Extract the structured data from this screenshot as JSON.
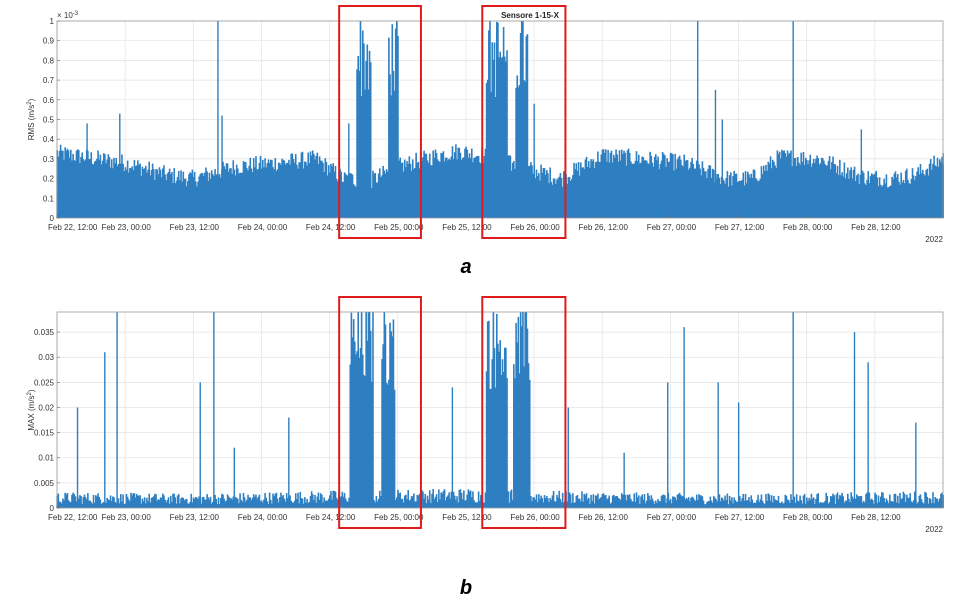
{
  "chart_data": [
    {
      "type": "bar",
      "panel_label": "a",
      "title": "Sensore 1-15-X",
      "ylabel_main": "RMS (m/s",
      "ylabel_sup": "2",
      "ylabel_end": ")",
      "y_exponent_base": "× 10",
      "y_exponent_power": "-3",
      "year_label": "2022",
      "y_scale": 0.001,
      "ylim": [
        0,
        1.0
      ],
      "yticks": [
        0,
        0.1,
        0.2,
        0.3,
        0.4,
        0.5,
        0.6,
        0.7,
        0.8,
        0.9,
        1
      ],
      "ytick_labels": [
        "0",
        "0.1",
        "0.2",
        "0.3",
        "0.4",
        "0.5",
        "0.6",
        "0.7",
        "0.8",
        "0.9",
        "1"
      ],
      "xlim_days": [
        0,
        6.5
      ],
      "xticks_days": [
        0,
        0.5,
        1,
        1.5,
        2,
        2.5,
        3,
        3.5,
        4,
        4.5,
        5,
        5.5,
        6
      ],
      "xtick_labels": [
        "Feb 22, 12:00",
        "Feb 23, 00:00",
        "Feb 23, 12:00",
        "Feb 24, 00:00",
        "Feb 24, 12:00",
        "Feb 25, 00:00",
        "Feb 25, 12:00",
        "Feb 26, 00:00",
        "Feb 26, 12:00",
        "Feb 27, 00:00",
        "Feb 27, 12:00",
        "Feb 28, 00:00",
        "Feb 28, 12:00"
      ],
      "grid": true,
      "series_color": "#2e7fc1",
      "samples_per_day": 120,
      "baseline_profile": {
        "x_days": [
          0,
          0.3,
          0.5,
          0.8,
          1.0,
          1.3,
          1.6,
          1.9,
          2.1,
          2.3,
          2.5,
          2.8,
          2.95,
          3.1,
          3.4,
          3.7,
          4.0,
          4.3,
          4.6,
          4.9,
          5.1,
          5.3,
          5.6,
          5.9,
          6.1,
          6.3,
          6.5
        ],
        "y": [
          0.33,
          0.3,
          0.28,
          0.22,
          0.2,
          0.26,
          0.28,
          0.3,
          0.2,
          0.19,
          0.26,
          0.32,
          0.34,
          0.32,
          0.26,
          0.2,
          0.32,
          0.3,
          0.28,
          0.2,
          0.2,
          0.31,
          0.3,
          0.21,
          0.2,
          0.22,
          0.3
        ]
      },
      "high_activity_intervals_days": [
        [
          2.2,
          2.3
        ],
        [
          2.43,
          2.5
        ],
        [
          3.15,
          3.3
        ],
        [
          3.36,
          3.45
        ]
      ],
      "peaks": [
        {
          "x_day": 0.22,
          "y": 0.48
        },
        {
          "x_day": 0.46,
          "y": 0.53
        },
        {
          "x_day": 1.18,
          "y": 1.0
        },
        {
          "x_day": 1.21,
          "y": 0.52
        },
        {
          "x_day": 2.14,
          "y": 0.48
        },
        {
          "x_day": 3.5,
          "y": 0.58
        },
        {
          "x_day": 4.7,
          "y": 1.0
        },
        {
          "x_day": 4.83,
          "y": 0.65
        },
        {
          "x_day": 4.88,
          "y": 0.5
        },
        {
          "x_day": 5.4,
          "y": 1.0
        },
        {
          "x_day": 5.9,
          "y": 0.45
        },
        {
          "x_day": 6.5,
          "y": 0.33
        }
      ],
      "highlight_intervals_days": [
        [
          2.07,
          2.67
        ],
        [
          3.12,
          3.73
        ]
      ],
      "highlight_color": "#e01b1b"
    },
    {
      "type": "bar",
      "panel_label": "b",
      "title": "",
      "ylabel_main": "MAX (m/s",
      "ylabel_sup": "2",
      "ylabel_end": ")",
      "y_exponent_base": "",
      "y_exponent_power": "",
      "year_label": "2022",
      "y_scale": 1,
      "ylim": [
        0,
        0.039
      ],
      "yticks": [
        0,
        0.005,
        0.01,
        0.015,
        0.02,
        0.025,
        0.03,
        0.035
      ],
      "ytick_labels": [
        "0",
        "0.005",
        "0.01",
        "0.015",
        "0.02",
        "0.025",
        "0.03",
        "0.035"
      ],
      "xlim_days": [
        0,
        6.5
      ],
      "xticks_days": [
        0,
        0.5,
        1,
        1.5,
        2,
        2.5,
        3,
        3.5,
        4,
        4.5,
        5,
        5.5,
        6
      ],
      "xtick_labels": [
        "Feb 22, 12:00",
        "Feb 23, 00:00",
        "Feb 23, 12:00",
        "Feb 24, 00:00",
        "Feb 24, 12:00",
        "Feb 25, 00:00",
        "Feb 25, 12:00",
        "Feb 26, 00:00",
        "Feb 26, 12:00",
        "Feb 27, 00:00",
        "Feb 27, 12:00",
        "Feb 28, 00:00",
        "Feb 28, 12:00"
      ],
      "grid": true,
      "series_color": "#2e7fc1",
      "samples_per_day": 120,
      "baseline_profile": {
        "x_days": [
          0,
          1,
          2,
          3,
          4,
          5,
          6,
          6.5
        ],
        "y": [
          0.002,
          0.0018,
          0.0022,
          0.0025,
          0.002,
          0.0018,
          0.002,
          0.0022
        ]
      },
      "high_activity_intervals_days": [
        [
          2.15,
          2.32
        ],
        [
          2.38,
          2.48
        ],
        [
          3.15,
          3.3
        ],
        [
          3.35,
          3.47
        ]
      ],
      "peaks": [
        {
          "x_day": 0.15,
          "y": 0.02
        },
        {
          "x_day": 0.35,
          "y": 0.031
        },
        {
          "x_day": 0.44,
          "y": 0.039
        },
        {
          "x_day": 1.05,
          "y": 0.025
        },
        {
          "x_day": 1.15,
          "y": 0.039
        },
        {
          "x_day": 1.3,
          "y": 0.012
        },
        {
          "x_day": 1.7,
          "y": 0.018
        },
        {
          "x_day": 2.9,
          "y": 0.024
        },
        {
          "x_day": 3.75,
          "y": 0.02
        },
        {
          "x_day": 4.6,
          "y": 0.036
        },
        {
          "x_day": 4.85,
          "y": 0.025
        },
        {
          "x_day": 5.4,
          "y": 0.039
        },
        {
          "x_day": 5.85,
          "y": 0.035
        },
        {
          "x_day": 5.95,
          "y": 0.029
        },
        {
          "x_day": 6.3,
          "y": 0.017
        },
        {
          "x_day": 4.48,
          "y": 0.025
        },
        {
          "x_day": 5.0,
          "y": 0.021
        },
        {
          "x_day": 4.16,
          "y": 0.011
        }
      ],
      "highlight_intervals_days": [
        [
          2.07,
          2.67
        ],
        [
          3.12,
          3.73
        ]
      ],
      "highlight_color": "#e01b1b"
    }
  ]
}
